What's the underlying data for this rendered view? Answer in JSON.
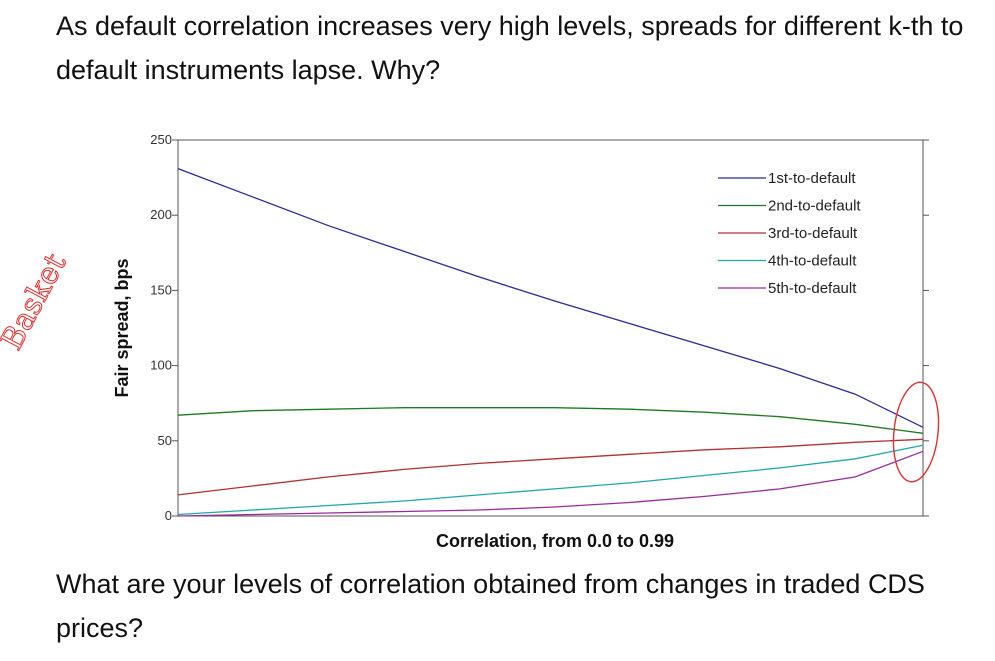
{
  "slide": {
    "heading": "As default correlation increases very high levels, spreads for different k-th to default instruments lapse. Why?",
    "footer": "What are your levels of correlation obtained from changes in traded CDS prices?",
    "handwritten_note": "Basket",
    "colors": {
      "annotation": "#e03030",
      "text": "#111111"
    }
  },
  "chart_data": {
    "type": "line",
    "title": "",
    "xlabel": "Correlation, from 0.0 to 0.99",
    "ylabel": "Fair spread, bps",
    "x": [
      0.0,
      0.1,
      0.2,
      0.3,
      0.4,
      0.5,
      0.6,
      0.7,
      0.8,
      0.9,
      0.99
    ],
    "xlim": [
      0.0,
      0.99
    ],
    "ylim": [
      0,
      250
    ],
    "yticks": [
      0,
      50,
      100,
      150,
      200,
      250
    ],
    "grid": false,
    "legend_position": "top-right",
    "series": [
      {
        "name": "1st-to-default",
        "color": "#2a2a9a",
        "values": [
          231,
          212,
          193,
          176,
          159,
          143,
          128,
          113,
          98,
          81,
          59
        ]
      },
      {
        "name": "2nd-to-default",
        "color": "#1f7a1f",
        "values": [
          67,
          70,
          71,
          72,
          72,
          72,
          71,
          69,
          66,
          61,
          55
        ]
      },
      {
        "name": "3rd-to-default",
        "color": "#b23030",
        "values": [
          14,
          20,
          26,
          31,
          35,
          38,
          41,
          44,
          46,
          49,
          51
        ]
      },
      {
        "name": "4th-to-default",
        "color": "#1fa8a8",
        "values": [
          1,
          4,
          7,
          10,
          14,
          18,
          22,
          27,
          32,
          38,
          47
        ]
      },
      {
        "name": "5th-to-default",
        "color": "#9a2a9a",
        "values": [
          0,
          1,
          2,
          3,
          4,
          6,
          9,
          13,
          18,
          26,
          43
        ]
      }
    ]
  }
}
